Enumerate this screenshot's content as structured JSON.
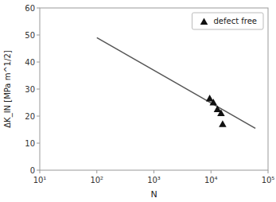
{
  "chart_data": {
    "type": "line",
    "title": "",
    "xlabel": "N",
    "ylabel": "ΔK_IN [MPa m^1/2]",
    "log": "x",
    "xlim": [
      10,
      100000
    ],
    "xticks": [
      {
        "value": 10,
        "label": "10¹"
      },
      {
        "value": 100,
        "label": "10²"
      },
      {
        "value": 1000,
        "label": "10³"
      },
      {
        "value": 10000,
        "label": "10⁴"
      },
      {
        "value": 100000,
        "label": "10⁵"
      }
    ],
    "ylim": [
      0,
      60
    ],
    "yticks": [
      0,
      10,
      20,
      30,
      40,
      50,
      60
    ],
    "grid": false,
    "legend": "upper right",
    "series": [
      {
        "type": "line",
        "color": "#555555",
        "line_style": "solid",
        "x": [
          100,
          60000
        ],
        "values": [
          49.0,
          15.5
        ]
      },
      {
        "type": "scatter",
        "name": "defect free",
        "color": "#111111",
        "marker": "triangle",
        "x": [
          9500,
          11000,
          13000,
          15000,
          16000
        ],
        "values": [
          26.5,
          25.0,
          22.5,
          21.0,
          17.0
        ]
      }
    ]
  }
}
